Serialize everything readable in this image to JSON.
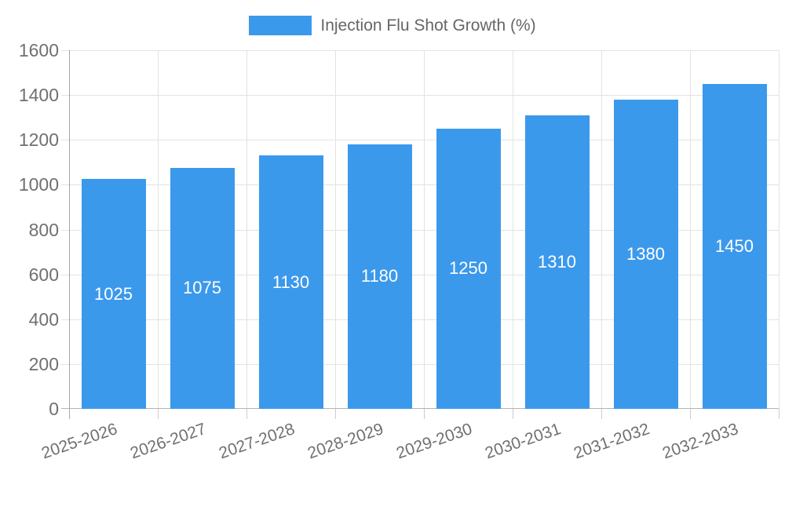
{
  "legend": {
    "label": "Injection Flu Shot Growth (%)"
  },
  "chart_data": {
    "type": "bar",
    "title": "Injection Flu Shot Growth (%)",
    "categories": [
      "2025-2026",
      "2026-2027",
      "2027-2028",
      "2028-2029",
      "2029-2030",
      "2030-2031",
      "2031-2032",
      "2032-2033"
    ],
    "values": [
      1025,
      1075,
      1130,
      1180,
      1250,
      1310,
      1380,
      1450
    ],
    "xlabel": "",
    "ylabel": "",
    "ylim": [
      0,
      1600
    ],
    "ytick_interval": 200,
    "ytick_labels_top_to_bottom": [
      "1600",
      "1400",
      "1200",
      "1000",
      "800",
      "600",
      "400",
      "200",
      "0"
    ],
    "grid": true,
    "legend_position": "top-center",
    "bar_value_label_position": "middle-of-bar",
    "colors": {
      "bar": "#3b99ec",
      "bar_label_text": "#ffffff",
      "axis_text": "#707070",
      "legend_text": "#666666",
      "grid_line": "#e3e3e3",
      "y_axis_line": "#a6a6a6",
      "x_axis_line": "#b3b3b3",
      "tick_line": "#cccccc",
      "background": "#ffffff"
    }
  }
}
